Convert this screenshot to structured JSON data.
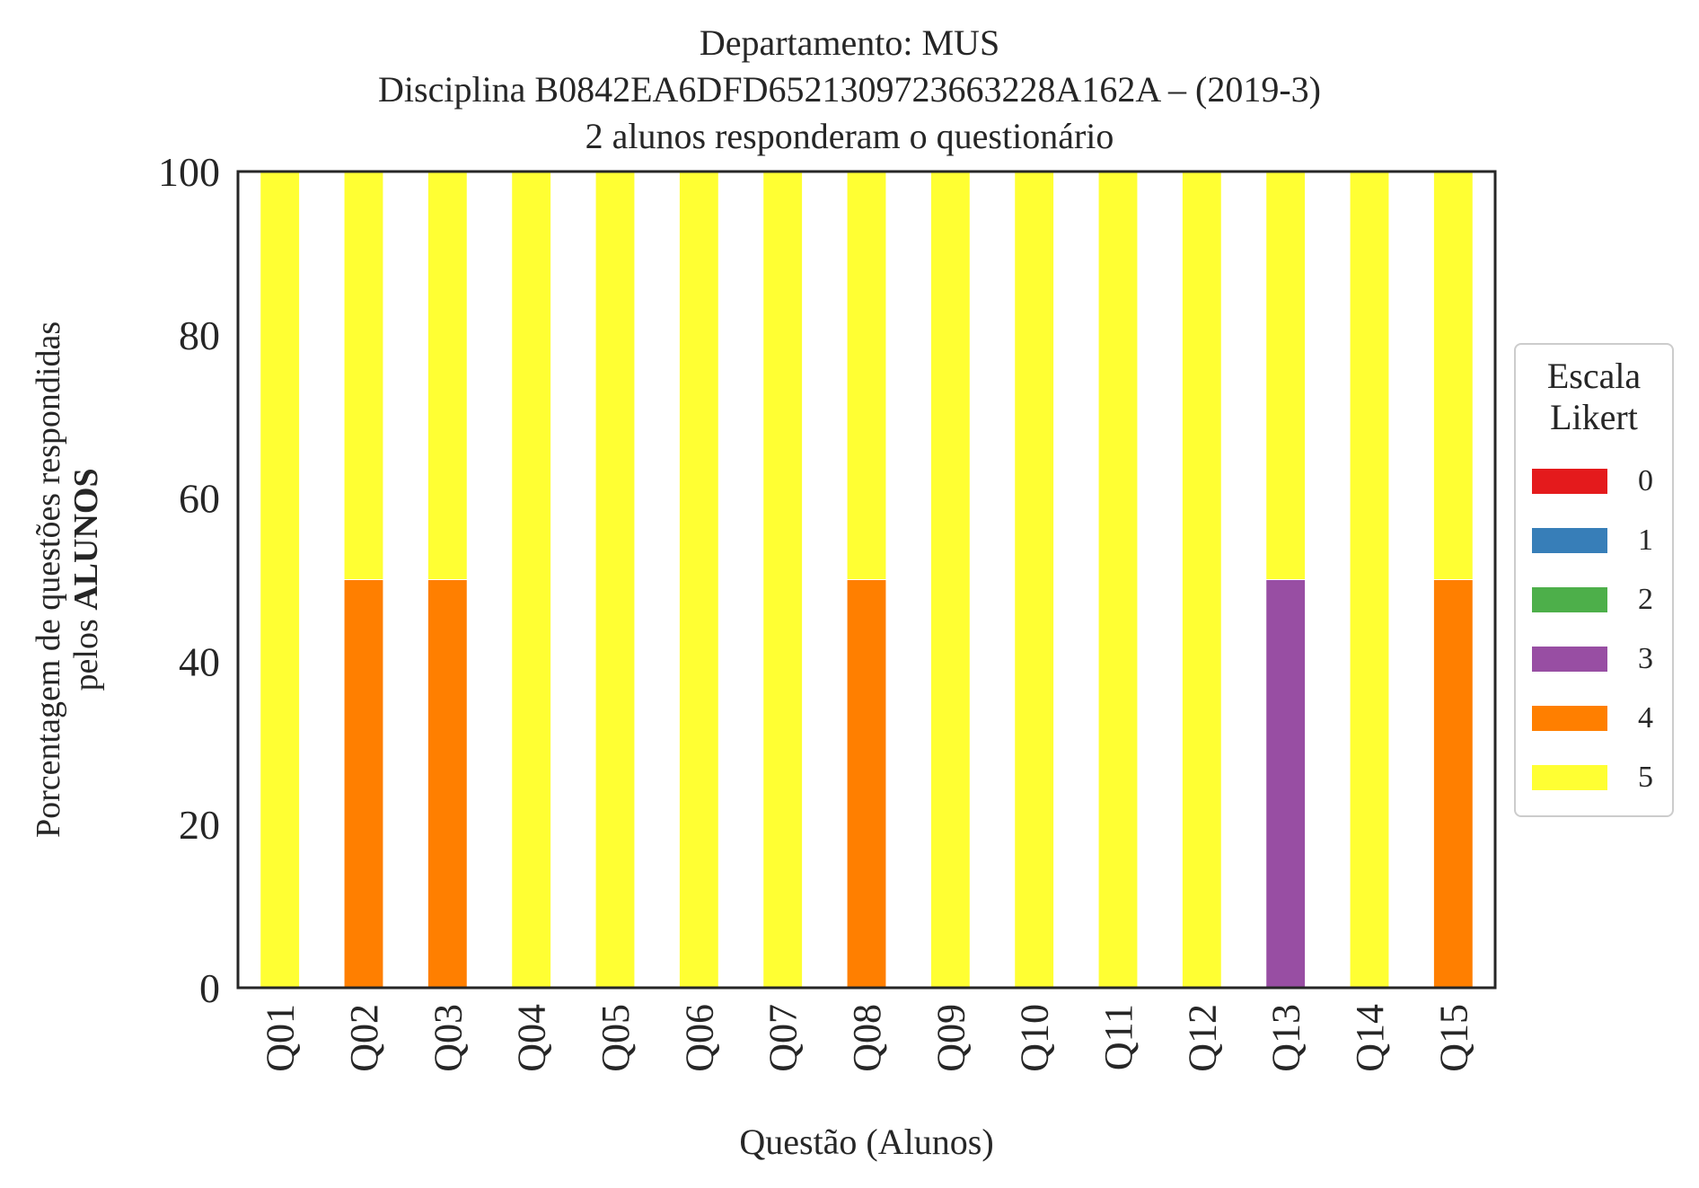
{
  "chart_data": {
    "type": "bar",
    "stacked": true,
    "title": [
      "Departamento: MUS",
      "Disciplina B0842EA6DFD6521309723663228A162A – (2019-3)",
      "2 alunos responderam o questionário"
    ],
    "xlabel": "Questão (Alunos)",
    "ylabel_line1": "Porcentagem de questões respondidas",
    "ylabel_line2_prefix": "pelos ",
    "ylabel_line2_bold": "ALUNOS",
    "ylim": [
      0,
      100
    ],
    "yticks": [
      "0",
      "20",
      "40",
      "60",
      "80",
      "100"
    ],
    "categories": [
      "Q01",
      "Q02",
      "Q03",
      "Q04",
      "Q05",
      "Q06",
      "Q07",
      "Q08",
      "Q09",
      "Q10",
      "Q11",
      "Q12",
      "Q13",
      "Q14",
      "Q15"
    ],
    "series": [
      {
        "name": "0",
        "color": "#e41a1c",
        "values": [
          0,
          0,
          0,
          0,
          0,
          0,
          0,
          0,
          0,
          0,
          0,
          0,
          0,
          0,
          0
        ]
      },
      {
        "name": "1",
        "color": "#377eb8",
        "values": [
          0,
          0,
          0,
          0,
          0,
          0,
          0,
          0,
          0,
          0,
          0,
          0,
          0,
          0,
          0
        ]
      },
      {
        "name": "2",
        "color": "#4daf4a",
        "values": [
          0,
          0,
          0,
          0,
          0,
          0,
          0,
          0,
          0,
          0,
          0,
          0,
          0,
          0,
          0
        ]
      },
      {
        "name": "3",
        "color": "#984ea3",
        "values": [
          0,
          0,
          0,
          0,
          0,
          0,
          0,
          0,
          0,
          0,
          0,
          0,
          50,
          0,
          0
        ]
      },
      {
        "name": "4",
        "color": "#ff7f00",
        "values": [
          0,
          50,
          50,
          0,
          0,
          0,
          0,
          50,
          0,
          0,
          0,
          0,
          0,
          0,
          50
        ]
      },
      {
        "name": "5",
        "color": "#ffff33",
        "values": [
          100,
          50,
          50,
          100,
          100,
          100,
          100,
          50,
          100,
          100,
          100,
          100,
          50,
          100,
          50
        ]
      }
    ],
    "legend": {
      "title_line1": "Escala",
      "title_line2": "Likert",
      "placement": "right"
    },
    "grid": false
  }
}
